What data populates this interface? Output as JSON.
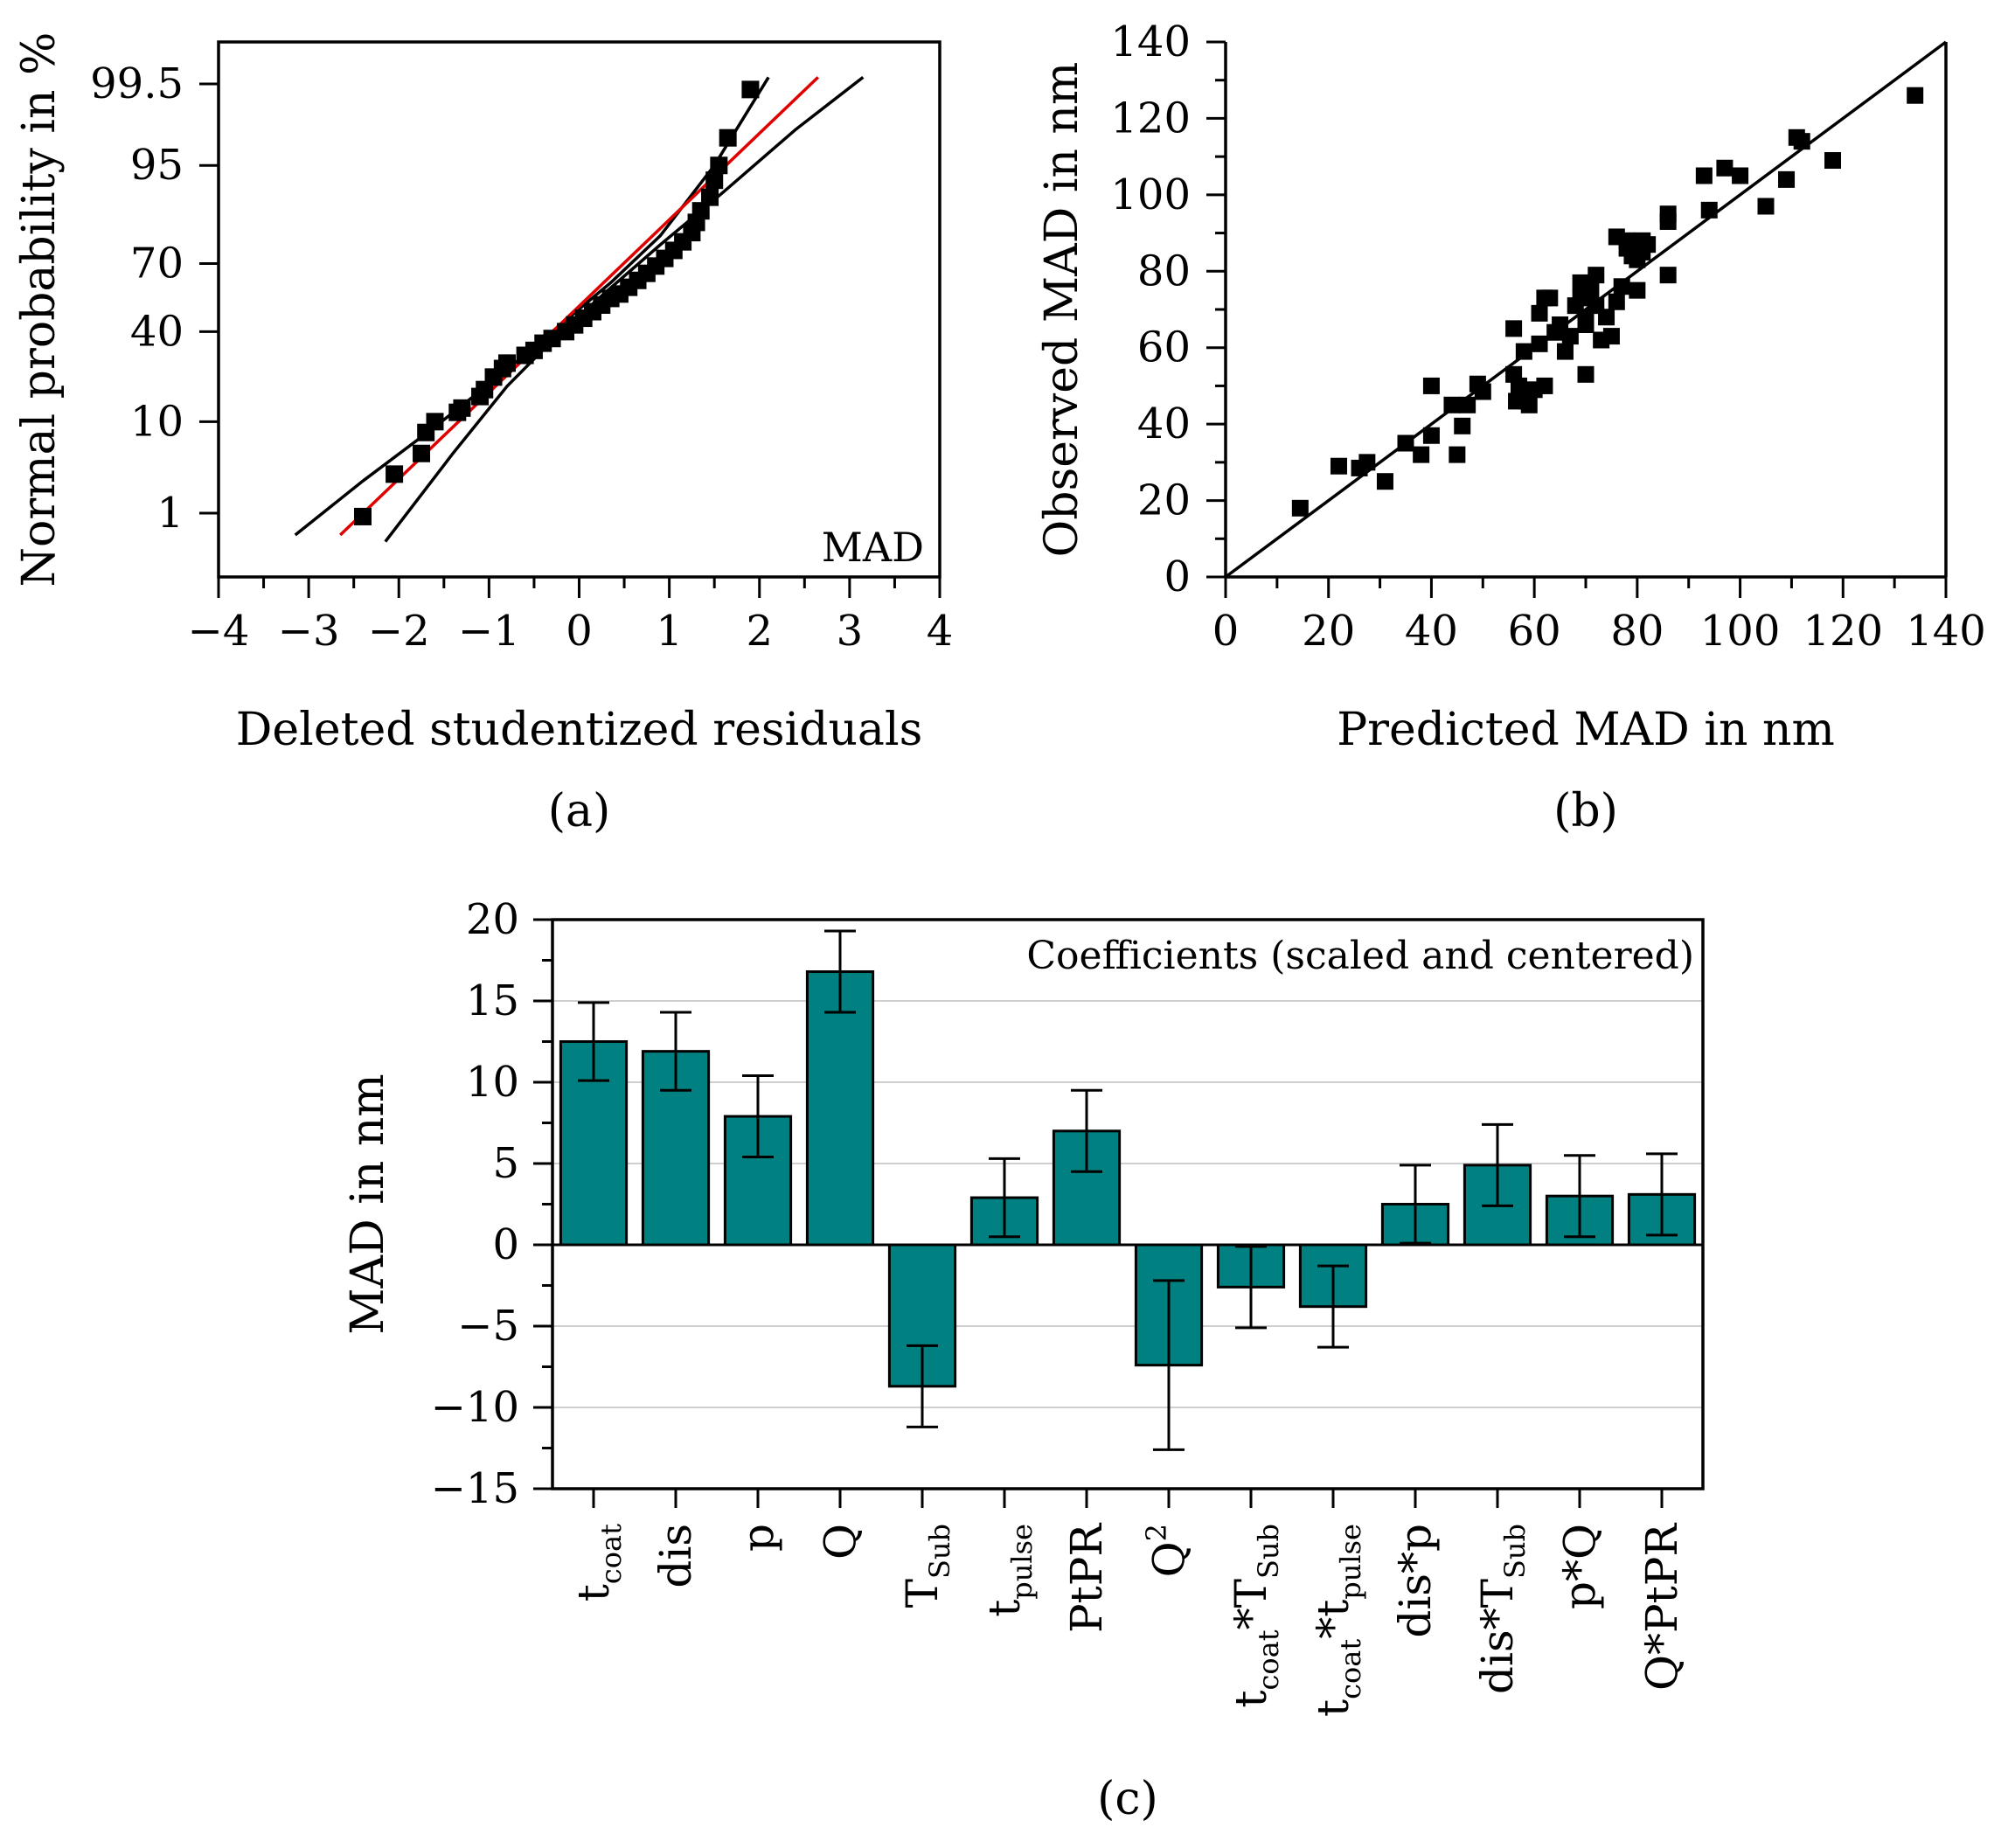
{
  "chart_data": [
    {
      "type": "scatter",
      "panel_label": "(a)",
      "xlabel": "Deleted studentized residuals",
      "ylabel": "Normal probability in %",
      "annotation": "MAD",
      "xlim": [
        -4,
        4
      ],
      "x_ticks": [
        -4,
        -3,
        -2,
        -1,
        0,
        1,
        2,
        3,
        4
      ],
      "x_tick_labels": [
        "−4",
        "−3",
        "−2",
        "−1",
        "0",
        "1",
        "2",
        "3",
        "4"
      ],
      "y_ticks": [
        1,
        10,
        40,
        70,
        95,
        99.5
      ],
      "y_tick_labels": [
        "1",
        "10",
        "40",
        "70",
        "95",
        "99.5"
      ],
      "y_scale": "normal-probability",
      "points": [
        {
          "x": -2.4,
          "p": 0.9
        },
        {
          "x": -2.05,
          "p": 3
        },
        {
          "x": -1.75,
          "p": 5
        },
        {
          "x": -1.7,
          "p": 8
        },
        {
          "x": -1.6,
          "p": 10
        },
        {
          "x": -1.35,
          "p": 12
        },
        {
          "x": -1.3,
          "p": 13
        },
        {
          "x": -1.1,
          "p": 16
        },
        {
          "x": -1.05,
          "p": 18
        },
        {
          "x": -0.95,
          "p": 22
        },
        {
          "x": -0.85,
          "p": 25
        },
        {
          "x": -0.8,
          "p": 27
        },
        {
          "x": -0.6,
          "p": 30
        },
        {
          "x": -0.5,
          "p": 32
        },
        {
          "x": -0.4,
          "p": 35
        },
        {
          "x": -0.3,
          "p": 37
        },
        {
          "x": -0.15,
          "p": 40
        },
        {
          "x": -0.05,
          "p": 43
        },
        {
          "x": 0.05,
          "p": 46
        },
        {
          "x": 0.15,
          "p": 49
        },
        {
          "x": 0.25,
          "p": 52
        },
        {
          "x": 0.35,
          "p": 55
        },
        {
          "x": 0.45,
          "p": 57
        },
        {
          "x": 0.55,
          "p": 60
        },
        {
          "x": 0.65,
          "p": 63
        },
        {
          "x": 0.75,
          "p": 66
        },
        {
          "x": 0.85,
          "p": 69
        },
        {
          "x": 0.95,
          "p": 72
        },
        {
          "x": 1.05,
          "p": 75
        },
        {
          "x": 1.15,
          "p": 78
        },
        {
          "x": 1.25,
          "p": 81
        },
        {
          "x": 1.3,
          "p": 84
        },
        {
          "x": 1.35,
          "p": 87
        },
        {
          "x": 1.45,
          "p": 90
        },
        {
          "x": 1.5,
          "p": 93
        },
        {
          "x": 1.55,
          "p": 95
        },
        {
          "x": 1.65,
          "p": 97.5
        },
        {
          "x": 1.9,
          "p": 99.4
        }
      ],
      "fit_line": {
        "color": "#e00000",
        "x": [
          -2.65,
          2.65
        ],
        "p": [
          0.5,
          99.6
        ]
      },
      "confidence_band": {
        "upper": {
          "x": [
            -3.15,
            -2.4,
            -1.6,
            -0.9,
            -0.3,
            0.35,
            0.9,
            1.5,
            2.1
          ],
          "p": [
            0.5,
            2.5,
            9,
            22,
            40,
            62,
            80,
            95,
            99.6
          ]
        },
        "lower": {
          "x": [
            -2.15,
            -1.4,
            -0.8,
            -0.25,
            0.3,
            0.9,
            1.6,
            2.4,
            3.15
          ],
          "p": [
            0.4,
            5,
            19,
            38,
            58,
            77,
            91,
            98,
            99.6
          ]
        }
      }
    },
    {
      "type": "scatter",
      "panel_label": "(b)",
      "xlabel": "Predicted MAD in nm",
      "ylabel": "Observed MAD in nm",
      "xlim": [
        0,
        140
      ],
      "ylim": [
        0,
        140
      ],
      "x_ticks": [
        0,
        20,
        40,
        60,
        80,
        100,
        120,
        140
      ],
      "y_ticks": [
        0,
        20,
        40,
        60,
        80,
        100,
        120,
        140
      ],
      "reference_line": {
        "x": [
          0,
          140
        ],
        "y": [
          0,
          140
        ]
      },
      "points": [
        [
          14.5,
          18
        ],
        [
          22,
          29
        ],
        [
          26,
          28.5
        ],
        [
          27.5,
          30
        ],
        [
          31,
          25
        ],
        [
          35,
          35
        ],
        [
          38,
          32
        ],
        [
          40,
          50
        ],
        [
          40,
          37
        ],
        [
          44,
          45
        ],
        [
          45,
          32
        ],
        [
          46,
          39.5
        ],
        [
          47,
          45
        ],
        [
          49,
          50.5
        ],
        [
          50,
          48.5
        ],
        [
          56,
          65
        ],
        [
          56.5,
          46
        ],
        [
          56,
          53
        ],
        [
          57,
          50
        ],
        [
          58,
          59
        ],
        [
          58.5,
          46
        ],
        [
          59,
          45
        ],
        [
          60,
          49
        ],
        [
          61,
          61
        ],
        [
          61,
          69
        ],
        [
          62,
          73
        ],
        [
          62,
          50
        ],
        [
          63,
          73
        ],
        [
          64,
          64
        ],
        [
          65,
          66
        ],
        [
          66,
          59
        ],
        [
          67,
          63
        ],
        [
          68,
          71
        ],
        [
          69,
          77
        ],
        [
          69,
          73
        ],
        [
          70,
          68
        ],
        [
          70,
          53
        ],
        [
          70,
          66
        ],
        [
          71,
          75
        ],
        [
          72,
          79
        ],
        [
          72,
          71
        ],
        [
          73,
          62
        ],
        [
          74,
          68
        ],
        [
          75,
          63
        ],
        [
          76,
          72
        ],
        [
          76,
          89
        ],
        [
          77,
          76
        ],
        [
          78,
          88
        ],
        [
          78,
          86
        ],
        [
          79,
          84
        ],
        [
          80,
          75
        ],
        [
          81,
          85
        ],
        [
          80,
          83
        ],
        [
          81,
          88
        ],
        [
          82,
          87
        ],
        [
          86,
          93
        ],
        [
          86,
          79
        ],
        [
          86,
          95
        ],
        [
          93,
          105
        ],
        [
          94,
          96
        ],
        [
          97,
          107
        ],
        [
          100,
          105
        ],
        [
          105,
          97
        ],
        [
          109,
          104
        ],
        [
          111,
          115
        ],
        [
          112,
          114
        ],
        [
          118,
          109
        ],
        [
          134,
          126
        ]
      ]
    },
    {
      "type": "bar",
      "panel_label": "(c)",
      "title": "Coefficients (scaled and centered)",
      "ylabel": "MAD in nm",
      "ylim": [
        -15,
        20
      ],
      "y_ticks": [
        -15,
        -10,
        -5,
        0,
        5,
        10,
        15,
        20
      ],
      "y_tick_labels": [
        "−15",
        "−10",
        "−5",
        "0",
        "5",
        "10",
        "15",
        "20"
      ],
      "bar_color": "#008080",
      "grid": "horizontal",
      "categories": [
        {
          "parts": [
            [
              "t",
              "base"
            ],
            [
              "coat",
              "sub"
            ]
          ]
        },
        {
          "parts": [
            [
              "dis",
              "base"
            ]
          ]
        },
        {
          "parts": [
            [
              "p",
              "base"
            ]
          ]
        },
        {
          "parts": [
            [
              "Q",
              "base"
            ]
          ]
        },
        {
          "parts": [
            [
              "T",
              "base"
            ],
            [
              "Sub",
              "sub"
            ]
          ]
        },
        {
          "parts": [
            [
              "t",
              "base"
            ],
            [
              "pulse",
              "sub"
            ]
          ]
        },
        {
          "parts": [
            [
              "PtPR",
              "base"
            ]
          ]
        },
        {
          "parts": [
            [
              "Q",
              "base"
            ],
            [
              "2",
              "sup"
            ]
          ]
        },
        {
          "parts": [
            [
              "t",
              "base"
            ],
            [
              "coat",
              "sub"
            ],
            [
              "*T",
              "base"
            ],
            [
              "Sub",
              "sub"
            ]
          ]
        },
        {
          "parts": [
            [
              "t",
              "base"
            ],
            [
              "coat",
              "sub"
            ],
            [
              "*t",
              "base"
            ],
            [
              "pulse",
              "sub"
            ]
          ]
        },
        {
          "parts": [
            [
              "dis*p",
              "base"
            ]
          ]
        },
        {
          "parts": [
            [
              "dis*T",
              "base"
            ],
            [
              "Sub",
              "sub"
            ]
          ]
        },
        {
          "parts": [
            [
              "p*Q",
              "base"
            ]
          ]
        },
        {
          "parts": [
            [
              "Q*PtPR",
              "base"
            ]
          ]
        }
      ],
      "values": [
        12.5,
        11.9,
        7.9,
        16.8,
        -8.7,
        2.9,
        7.0,
        -7.4,
        -2.6,
        -3.8,
        2.5,
        4.9,
        3.0,
        3.1
      ],
      "errors": [
        2.4,
        2.4,
        2.5,
        2.5,
        2.5,
        2.4,
        2.5,
        5.2,
        2.5,
        2.5,
        2.4,
        2.5,
        2.5,
        2.5
      ]
    }
  ]
}
